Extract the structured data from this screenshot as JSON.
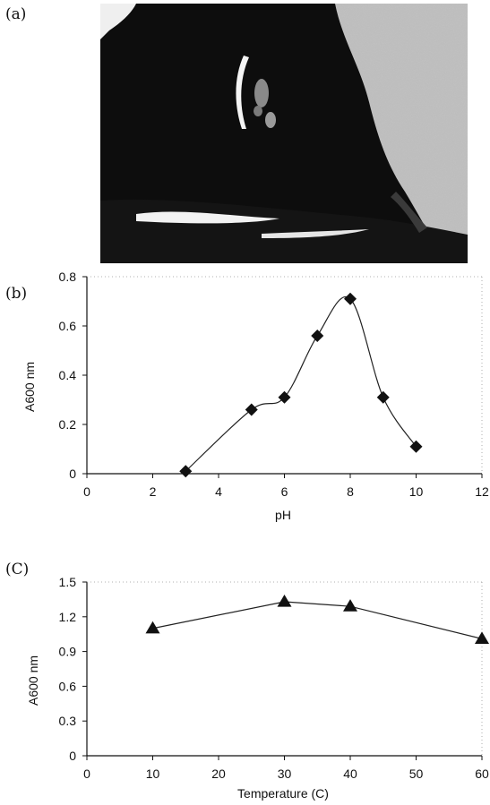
{
  "panels": {
    "a": "(a)",
    "b": "(b)",
    "c": "(C)"
  },
  "photo": {
    "description_icon": "micrograph-photo"
  },
  "colors": {
    "marker": "#111111",
    "line": "#222222",
    "axis": "#111111"
  },
  "chart_data": [
    {
      "type": "line",
      "marker": "diamond",
      "xlabel": "pH",
      "ylabel": "A600 nm",
      "xlim": [
        0,
        12
      ],
      "ylim": [
        0,
        0.8
      ],
      "xticks": [
        0,
        2,
        4,
        6,
        8,
        10,
        12
      ],
      "yticks": [
        0,
        0.2,
        0.4,
        0.6,
        0.8
      ],
      "xtick_labels": [
        "0",
        "2",
        "4",
        "6",
        "8",
        "10",
        "12"
      ],
      "ytick_labels": [
        "0",
        "0.2",
        "0.4",
        "0.6",
        "0.8"
      ],
      "x": [
        3,
        5,
        6,
        7,
        8,
        9,
        10
      ],
      "y": [
        0.01,
        0.26,
        0.31,
        0.56,
        0.71,
        0.31,
        0.11
      ],
      "grid": false
    },
    {
      "type": "line",
      "marker": "triangle",
      "xlabel": "Temperature (C)",
      "ylabel": "A600 nm",
      "xlim": [
        0,
        60
      ],
      "ylim": [
        0,
        1.5
      ],
      "xticks": [
        0,
        10,
        20,
        30,
        40,
        50,
        60
      ],
      "yticks": [
        0,
        0.3,
        0.6,
        0.9,
        1.2,
        1.5
      ],
      "xtick_labels": [
        "0",
        "10",
        "20",
        "30",
        "40",
        "50",
        "60"
      ],
      "ytick_labels": [
        "0",
        "0.3",
        "0.6",
        "0.9",
        "1.2",
        "1.5"
      ],
      "x": [
        10,
        30,
        40,
        60
      ],
      "y": [
        1.1,
        1.33,
        1.29,
        1.01
      ],
      "grid": false
    }
  ]
}
